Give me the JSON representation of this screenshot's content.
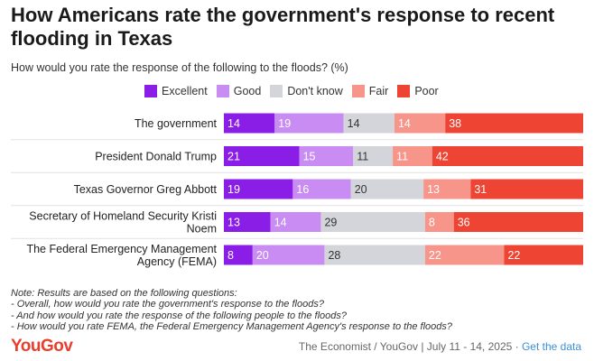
{
  "header": {
    "title": "How Americans rate the government's response to recent flooding in Texas",
    "subtitle": "How would you rate the response of the following to the floods? (%)"
  },
  "legend": [
    {
      "label": "Excellent",
      "color": "#8a1ee6"
    },
    {
      "label": "Good",
      "color": "#c88cf2"
    },
    {
      "label": "Don't know",
      "color": "#d3d5da"
    },
    {
      "label": "Fair",
      "color": "#f7958a"
    },
    {
      "label": "Poor",
      "color": "#ee4433"
    }
  ],
  "chart_data": {
    "type": "bar",
    "orientation": "horizontal",
    "stacked": true,
    "unit": "%",
    "title": "How Americans rate the government's response to recent flooding in Texas",
    "categories": [
      "The government",
      "President Donald Trump",
      "Texas Governor Greg Abbott",
      "Secretary of Homeland Security Kristi Noem",
      "The Federal Emergency Management Agency (FEMA)"
    ],
    "category_lines": [
      [
        "The government"
      ],
      [
        "President Donald Trump"
      ],
      [
        "Texas Governor Greg Abbott"
      ],
      [
        "Secretary of Homeland Security Kristi",
        "Noem"
      ],
      [
        "The Federal Emergency Management",
        "Agency (FEMA)"
      ]
    ],
    "series": [
      {
        "name": "Excellent",
        "values": [
          14,
          21,
          19,
          13,
          8
        ],
        "color": "#8a1ee6",
        "label_color": "#ffffff"
      },
      {
        "name": "Good",
        "values": [
          19,
          15,
          16,
          14,
          20
        ],
        "color": "#c88cf2",
        "label_color": "#ffffff"
      },
      {
        "name": "Don't know",
        "values": [
          14,
          11,
          20,
          29,
          28
        ],
        "color": "#d3d5da",
        "label_color": "#333333"
      },
      {
        "name": "Fair",
        "values": [
          14,
          11,
          13,
          8,
          22
        ],
        "color": "#f7958a",
        "label_color": "#ffffff"
      },
      {
        "name": "Poor",
        "values": [
          38,
          42,
          31,
          36,
          22
        ],
        "color": "#ee4433",
        "label_color": "#ffffff"
      }
    ]
  },
  "note": {
    "lines": [
      "Note: Results are based on the following questions:",
      "- Overall, how would you rate the government's response to the floods?",
      "- And how would you rate the response of the following people to the floods?",
      "- How would you rate FEMA, the Federal Emergency Management Agency's response to the floods?"
    ]
  },
  "footer": {
    "logo": "YouGov",
    "source": "The Economist / YouGov | July 11 - 14, 2025 · ",
    "link": "Get the data"
  }
}
